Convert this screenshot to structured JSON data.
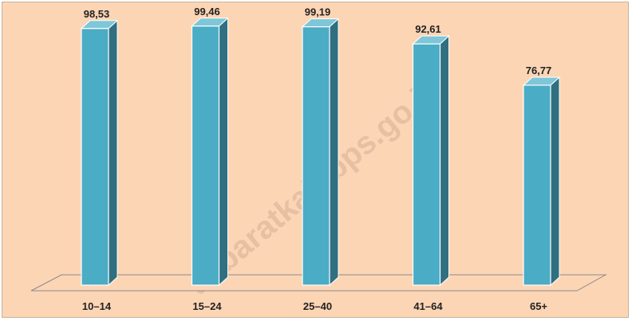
{
  "chart_data": {
    "type": "bar",
    "categories": [
      "10–14",
      "15–24",
      "25–40",
      "41–64",
      "65+"
    ],
    "values": [
      98.53,
      99.46,
      99.19,
      92.61,
      76.77
    ],
    "value_labels": [
      "98,53",
      "99,46",
      "99,19",
      "92,61",
      "76,77"
    ],
    "title": "",
    "xlabel": "",
    "ylabel": "",
    "ylim": [
      0,
      100
    ],
    "grid": false,
    "legend": "none",
    "style": "3d-column"
  },
  "watermark": {
    "text": "asbaratkab.bps.go.id",
    "color": "#e7bfa3"
  },
  "colors": {
    "background": "#fcd5b5",
    "bar_front": "#4bacc6",
    "bar_side": "#2f6f80",
    "bar_top": "#7fc6d8",
    "bar_edge": "#ffffff",
    "floor": "#fcd5b5",
    "floor_stroke": "#8a8a8a"
  }
}
